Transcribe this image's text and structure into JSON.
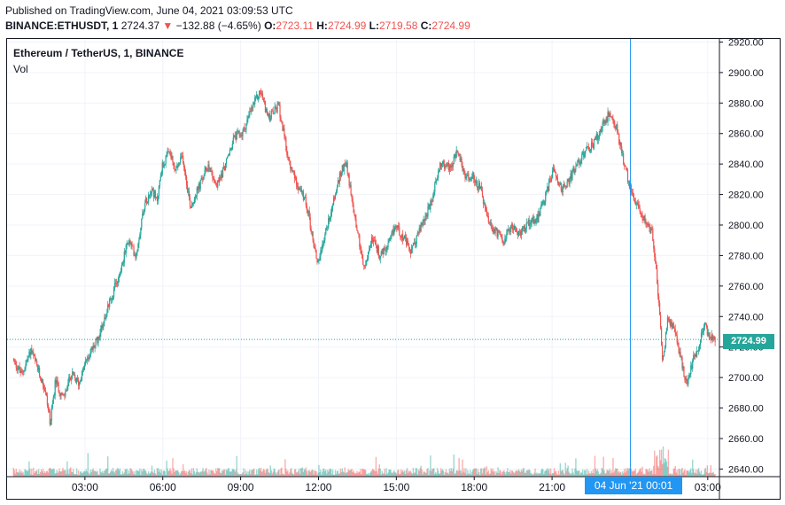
{
  "header": {
    "published": "Published on TradingView.com, June 04, 2021 03:09:53 UTC",
    "symbol": "BINANCE:ETHUSDT, 1",
    "last": "2724.37",
    "change_arrow": "▼",
    "change": "−132.88 (−4.65%)",
    "o_label": "O:",
    "o": "2723.11",
    "h_label": "H:",
    "h": "2724.99",
    "l_label": "L:",
    "l": "2719.58",
    "c_label": "C:",
    "c": "2724.99"
  },
  "legend": {
    "title": "Ethereum / TetherUS, 1, BINANCE",
    "volume": "Vol"
  },
  "crosshair": {
    "time_label": "04 Jun '21   00:01"
  },
  "last_price_label": "2724.99",
  "colors": {
    "up": "#26a69a",
    "down": "#ef5350",
    "grid": "#f0f3fa",
    "crosshair": "#2196f3",
    "axis_text": "#131722"
  },
  "chart_data": {
    "type": "candlestick",
    "title": "Ethereum / TetherUS, 1, BINANCE",
    "y_axis": {
      "min": 2635,
      "max": 2922,
      "ticks": [
        2640,
        2660,
        2680,
        2700,
        2720,
        2740,
        2760,
        2780,
        2800,
        2820,
        2840,
        2860,
        2880,
        2900,
        2920
      ],
      "tick_labels": [
        "2640.00",
        "2660.00",
        "2680.00",
        "2700.00",
        "2720.00",
        "2740.00",
        "2760.00",
        "2780.00",
        "2800.00",
        "2820.00",
        "2840.00",
        "2860.00",
        "2880.00",
        "2900.00",
        "2920.00"
      ]
    },
    "x_axis": {
      "ticks": [
        "03:00",
        "06:00",
        "09:00",
        "12:00",
        "15:00",
        "18:00",
        "21:00",
        "03:00"
      ],
      "tick_hours": [
        3,
        6,
        9,
        12,
        15,
        18,
        21,
        27
      ],
      "range_hours": [
        0.25,
        27.3
      ]
    },
    "last_price": 2724.99,
    "crosshair_hour": 24.02,
    "price_path": [
      [
        0.25,
        2712
      ],
      [
        0.6,
        2702
      ],
      [
        0.95,
        2718
      ],
      [
        1.2,
        2706
      ],
      [
        1.5,
        2692
      ],
      [
        1.7,
        2670
      ],
      [
        1.9,
        2698
      ],
      [
        2.2,
        2686
      ],
      [
        2.5,
        2702
      ],
      [
        2.8,
        2696
      ],
      [
        3.1,
        2712
      ],
      [
        3.5,
        2724
      ],
      [
        3.9,
        2745
      ],
      [
        4.4,
        2770
      ],
      [
        4.7,
        2790
      ],
      [
        5.0,
        2780
      ],
      [
        5.3,
        2812
      ],
      [
        5.6,
        2825
      ],
      [
        5.8,
        2815
      ],
      [
        6.0,
        2838
      ],
      [
        6.3,
        2848
      ],
      [
        6.5,
        2835
      ],
      [
        6.8,
        2845
      ],
      [
        7.1,
        2812
      ],
      [
        7.5,
        2828
      ],
      [
        7.8,
        2840
      ],
      [
        8.1,
        2825
      ],
      [
        8.5,
        2842
      ],
      [
        8.8,
        2858
      ],
      [
        9.1,
        2860
      ],
      [
        9.5,
        2878
      ],
      [
        9.8,
        2888
      ],
      [
        10.1,
        2870
      ],
      [
        10.5,
        2878
      ],
      [
        10.9,
        2840
      ],
      [
        11.2,
        2828
      ],
      [
        11.6,
        2812
      ],
      [
        11.8,
        2792
      ],
      [
        12.0,
        2775
      ],
      [
        12.3,
        2795
      ],
      [
        12.6,
        2815
      ],
      [
        12.9,
        2835
      ],
      [
        13.1,
        2842
      ],
      [
        13.3,
        2818
      ],
      [
        13.6,
        2790
      ],
      [
        13.8,
        2770
      ],
      [
        14.1,
        2792
      ],
      [
        14.4,
        2780
      ],
      [
        14.7,
        2785
      ],
      [
        15.0,
        2800
      ],
      [
        15.3,
        2792
      ],
      [
        15.6,
        2782
      ],
      [
        16.0,
        2800
      ],
      [
        16.4,
        2815
      ],
      [
        16.7,
        2840
      ],
      [
        17.1,
        2838
      ],
      [
        17.4,
        2848
      ],
      [
        17.7,
        2830
      ],
      [
        18.0,
        2832
      ],
      [
        18.3,
        2822
      ],
      [
        18.6,
        2800
      ],
      [
        18.9,
        2795
      ],
      [
        19.2,
        2790
      ],
      [
        19.5,
        2800
      ],
      [
        19.8,
        2793
      ],
      [
        20.1,
        2802
      ],
      [
        20.5,
        2805
      ],
      [
        20.8,
        2820
      ],
      [
        21.1,
        2838
      ],
      [
        21.4,
        2823
      ],
      [
        21.7,
        2830
      ],
      [
        22.0,
        2840
      ],
      [
        22.3,
        2848
      ],
      [
        22.6,
        2852
      ],
      [
        22.9,
        2862
      ],
      [
        23.2,
        2872
      ],
      [
        23.5,
        2865
      ],
      [
        23.8,
        2840
      ],
      [
        24.1,
        2822
      ],
      [
        24.4,
        2808
      ],
      [
        24.7,
        2802
      ],
      [
        24.9,
        2794
      ],
      [
        25.1,
        2760
      ],
      [
        25.3,
        2710
      ],
      [
        25.5,
        2740
      ],
      [
        25.8,
        2728
      ],
      [
        26.0,
        2712
      ],
      [
        26.2,
        2695
      ],
      [
        26.4,
        2708
      ],
      [
        26.7,
        2722
      ],
      [
        26.9,
        2734
      ],
      [
        27.1,
        2728
      ],
      [
        27.3,
        2725
      ]
    ]
  }
}
